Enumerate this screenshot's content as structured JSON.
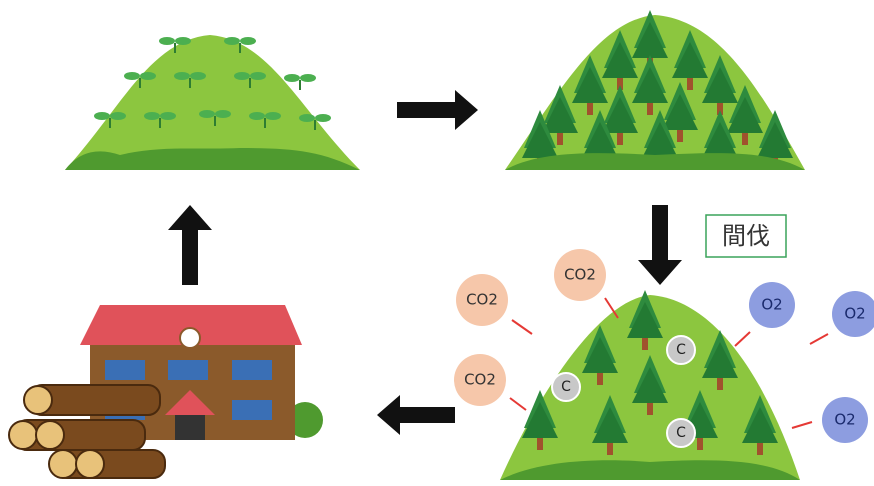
{
  "label": "間伐",
  "co2": [
    "CO2",
    "CO2",
    "CO2"
  ],
  "o2": [
    "O2",
    "O2",
    "O2"
  ],
  "carbon": [
    "C",
    "C",
    "C"
  ]
}
